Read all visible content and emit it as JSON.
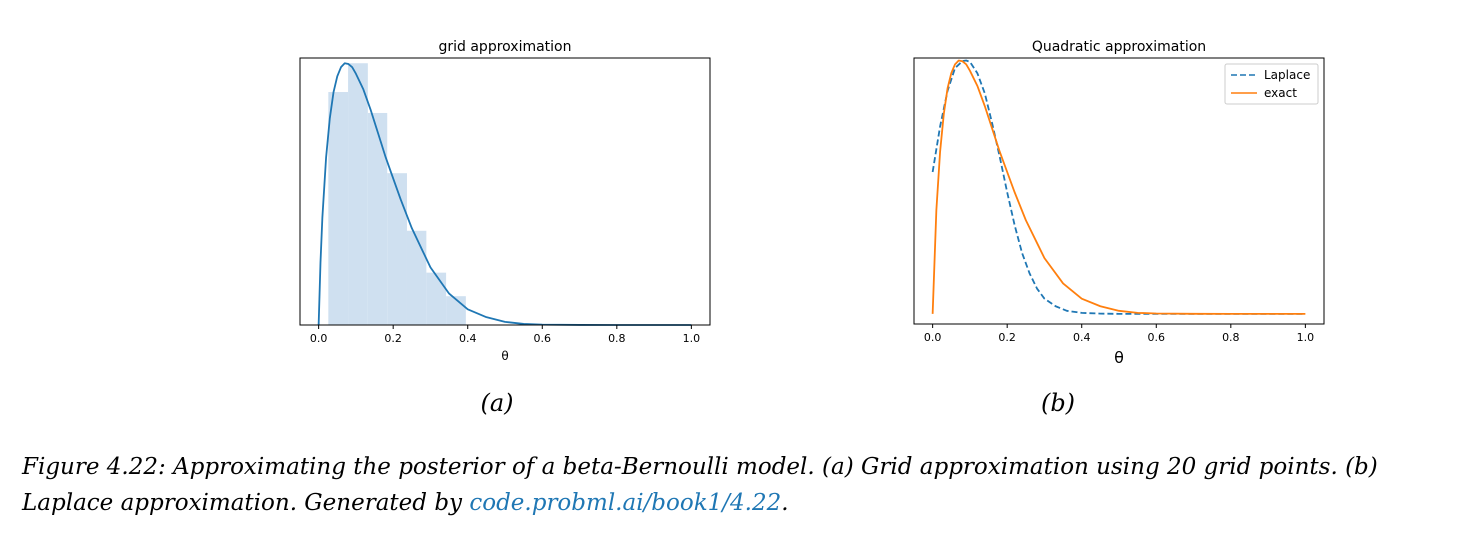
{
  "caption": {
    "prefix": "Figure 4.22: Approximating the posterior of a beta-Bernoulli model. (a) Grid approximation using 20 grid points. (b) Laplace approximation. Generated by ",
    "link_text": "code.probml.ai/book1/4.22",
    "suffix": "."
  },
  "colors": {
    "blue": "#1f77b4",
    "orange": "#ff7f0e",
    "hist_fill": "#cfe0f0"
  },
  "chart_data": [
    {
      "type": "bar",
      "panel_label": "(a)",
      "title": "grid approximation",
      "xlabel": "θ",
      "ylabel": "",
      "xlim": [
        -0.05,
        1.05
      ],
      "ylim": [
        0,
        1.02
      ],
      "xticks": [
        "0.0",
        "0.2",
        "0.4",
        "0.6",
        "0.8",
        "1.0"
      ],
      "histogram": {
        "bin_edges": [
          0.026,
          0.079,
          0.132,
          0.184,
          0.237,
          0.289,
          0.342,
          0.395
        ],
        "heights": [
          0.89,
          1.0,
          0.81,
          0.58,
          0.36,
          0.2,
          0.11
        ]
      },
      "curve": {
        "x": [
          0.0,
          0.005,
          0.01,
          0.02,
          0.03,
          0.04,
          0.05,
          0.06,
          0.07,
          0.08,
          0.09,
          0.1,
          0.12,
          0.14,
          0.16,
          0.18,
          0.2,
          0.22,
          0.25,
          0.28,
          0.3,
          0.35,
          0.4,
          0.45,
          0.5,
          0.55,
          0.6,
          0.7,
          0.8,
          0.9,
          1.0
        ],
        "y": [
          0.0,
          0.24,
          0.41,
          0.64,
          0.79,
          0.89,
          0.95,
          0.985,
          1.0,
          0.997,
          0.985,
          0.96,
          0.9,
          0.82,
          0.73,
          0.64,
          0.56,
          0.48,
          0.37,
          0.28,
          0.22,
          0.12,
          0.06,
          0.03,
          0.012,
          0.004,
          0.0015,
          0.0002,
          0.0,
          0.0,
          0.0
        ]
      }
    },
    {
      "type": "line",
      "panel_label": "(b)",
      "title": "Quadratic approximation",
      "xlabel": "θ",
      "ylabel": "",
      "xlim": [
        -0.05,
        1.05
      ],
      "ylim": [
        -0.04,
        1.01
      ],
      "xticks": [
        "0.0",
        "0.2",
        "0.4",
        "0.6",
        "0.8",
        "1.0"
      ],
      "legend_position": "top-right",
      "series": [
        {
          "name": "Laplace",
          "style": "dashed",
          "x": [
            0.0,
            0.02,
            0.04,
            0.06,
            0.08,
            0.09,
            0.1,
            0.12,
            0.14,
            0.16,
            0.18,
            0.2,
            0.22,
            0.24,
            0.26,
            0.28,
            0.3,
            0.33,
            0.36,
            0.4,
            0.45,
            0.5,
            0.6,
            0.8,
            1.0
          ],
          "y": [
            0.56,
            0.74,
            0.88,
            0.97,
            0.998,
            1.0,
            0.995,
            0.95,
            0.87,
            0.75,
            0.62,
            0.48,
            0.35,
            0.24,
            0.16,
            0.1,
            0.06,
            0.03,
            0.012,
            0.004,
            0.001,
            0.0,
            0.0,
            0.0,
            0.0
          ]
        },
        {
          "name": "exact",
          "style": "solid",
          "x": [
            0.0,
            0.01,
            0.02,
            0.03,
            0.04,
            0.05,
            0.06,
            0.07,
            0.08,
            0.09,
            0.1,
            0.12,
            0.14,
            0.16,
            0.18,
            0.2,
            0.22,
            0.25,
            0.28,
            0.3,
            0.35,
            0.4,
            0.45,
            0.5,
            0.55,
            0.6,
            0.7,
            0.8,
            0.9,
            1.0
          ],
          "y": [
            0.0,
            0.41,
            0.64,
            0.79,
            0.89,
            0.95,
            0.985,
            1.0,
            0.997,
            0.985,
            0.96,
            0.9,
            0.82,
            0.73,
            0.64,
            0.56,
            0.48,
            0.37,
            0.28,
            0.22,
            0.12,
            0.06,
            0.03,
            0.012,
            0.004,
            0.0015,
            0.0002,
            0.0,
            0.0,
            0.0
          ]
        }
      ]
    }
  ]
}
